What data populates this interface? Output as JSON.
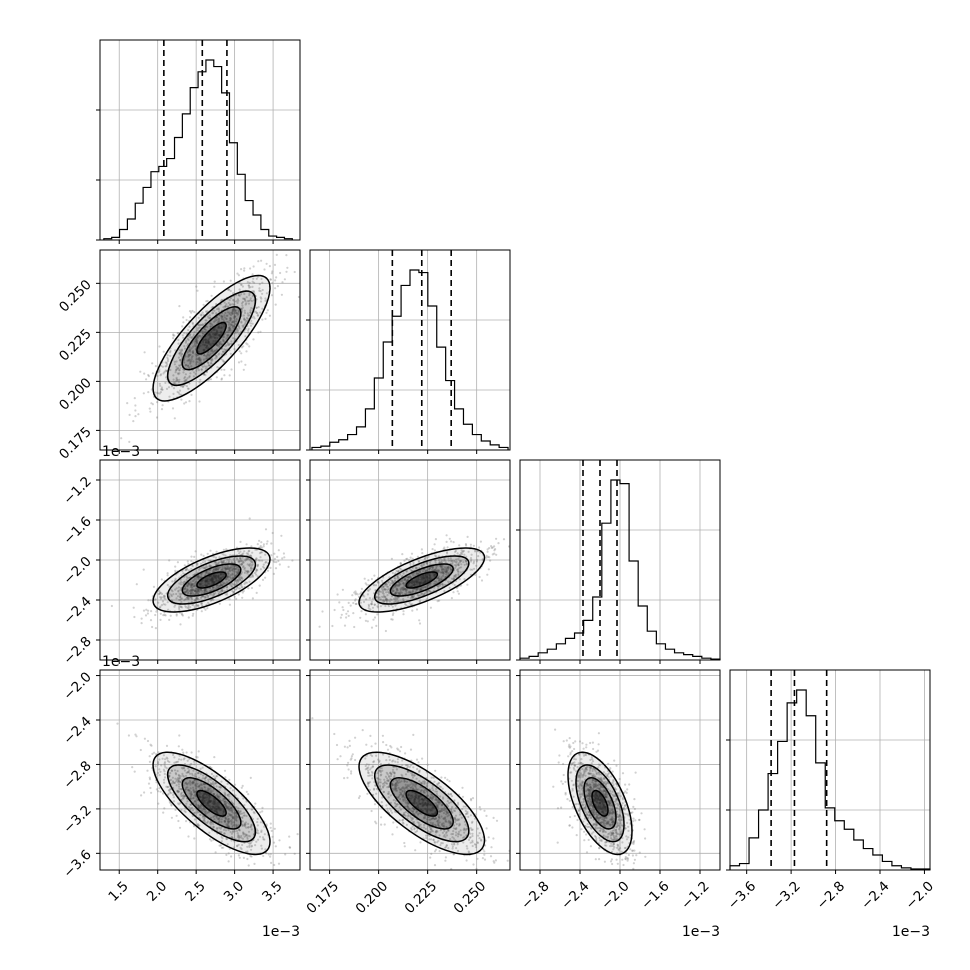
{
  "chart_data": {
    "type": "corner",
    "parameters": [
      {
        "range": [
          1.25,
          3.85
        ],
        "ticks": [
          1.5,
          2.0,
          2.5,
          3.0,
          3.5
        ],
        "tick_labels": [
          "1.5",
          "2.0",
          "2.5",
          "3.0",
          "3.5"
        ],
        "offset_text": "1e−3",
        "mean": 2.7,
        "sd": 0.38
      },
      {
        "range": [
          0.165,
          0.267
        ],
        "ticks": [
          0.175,
          0.2,
          0.225,
          0.25
        ],
        "tick_labels": [
          "0.175",
          "0.200",
          "0.225",
          "0.250"
        ],
        "offset_text": "",
        "mean": 0.222,
        "sd": 0.016
      },
      {
        "range": [
          -3.0,
          -1.0
        ],
        "ticks": [
          -2.8,
          -2.4,
          -2.0,
          -1.6,
          -1.2
        ],
        "tick_labels": [
          "−2.8",
          "−2.4",
          "−2.0",
          "−1.6",
          "−1.2"
        ],
        "offset_text": "1e−3",
        "mean": -2.2,
        "sd": 0.16
      },
      {
        "range": [
          -3.75,
          -1.95
        ],
        "ticks": [
          -3.6,
          -3.2,
          -2.8,
          -2.4,
          -2.0
        ],
        "tick_labels": [
          "−3.6",
          "−3.2",
          "−2.8",
          "−2.4",
          "−2.0"
        ],
        "offset_text": "1e−3",
        "mean": -3.15,
        "sd": 0.23
      }
    ],
    "quantiles": [
      [
        2.08,
        2.58,
        2.9
      ],
      [
        0.207,
        0.222,
        0.237
      ],
      [
        -2.37,
        -2.2,
        -2.03
      ],
      [
        -3.38,
        -3.17,
        -2.88
      ]
    ],
    "histograms": [
      {
        "bins": [
          1.3,
          3.75
        ],
        "counts": [
          1,
          2,
          8,
          16,
          28,
          40,
          52,
          56,
          62,
          78,
          96,
          116,
          128,
          137,
          132,
          112,
          74,
          50,
          30,
          19,
          8,
          3,
          2,
          1
        ]
      },
      {
        "bins": [
          0.166,
          0.266
        ],
        "counts": [
          2,
          3,
          6,
          8,
          12,
          18,
          32,
          56,
          84,
          104,
          128,
          140,
          138,
          112,
          80,
          54,
          32,
          20,
          12,
          7,
          4,
          2
        ]
      },
      {
        "bins": [
          -3.0,
          -1.0
        ],
        "counts": [
          2,
          4,
          8,
          12,
          18,
          24,
          30,
          44,
          70,
          152,
          200,
          196,
          110,
          60,
          32,
          18,
          12,
          8,
          6,
          4,
          2,
          1
        ]
      },
      {
        "bins": [
          -3.75,
          -1.95
        ],
        "counts": [
          4,
          6,
          30,
          56,
          90,
          120,
          156,
          168,
          144,
          100,
          58,
          46,
          38,
          28,
          20,
          14,
          8,
          4,
          2,
          1,
          1
        ]
      }
    ],
    "correlations": [
      [
        0,
        1,
        0.8
      ],
      [
        0,
        2,
        0.65
      ],
      [
        1,
        2,
        0.7
      ],
      [
        0,
        3,
        -0.75
      ],
      [
        1,
        3,
        -0.72
      ],
      [
        2,
        3,
        -0.55
      ]
    ],
    "contour_levels_sigma": [
      0.5,
      1.0,
      1.5,
      2.0
    ],
    "grid": true,
    "xlabel": "",
    "ylabel": "",
    "title": ""
  }
}
